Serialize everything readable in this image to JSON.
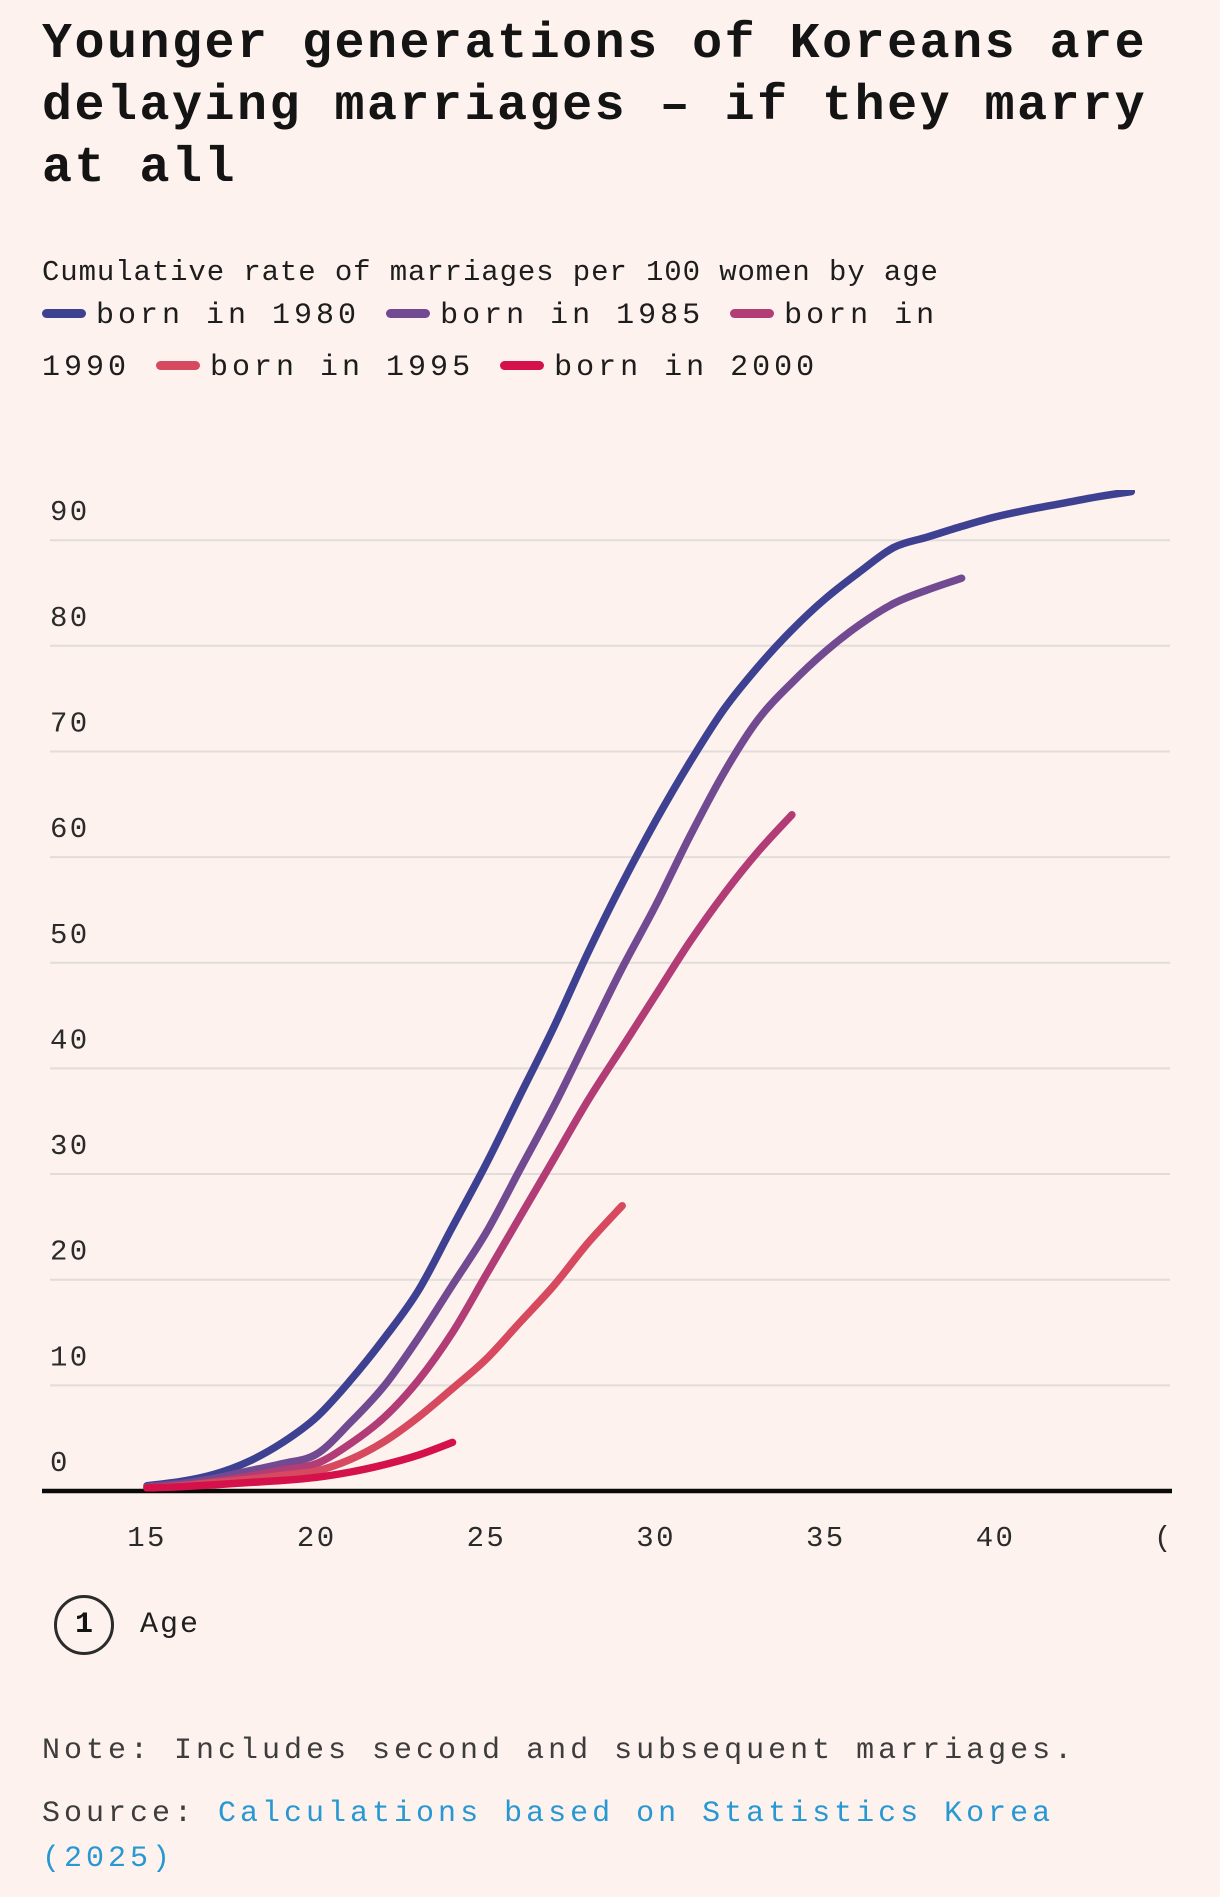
{
  "title": "Younger generations of Koreans are delaying marriages – if they marry at all",
  "subtitle": "Cumulative rate of marriages per 100 women by age",
  "colors": {
    "background": "#fdf2ee",
    "title_text": "#141414",
    "body_text": "#1d1d1d",
    "tick_text": "#2b2b2b",
    "note_text": "#3d3d3d",
    "grid": "#e2dcda",
    "axis": "#0a0a0a",
    "link": "#2798d3"
  },
  "legend": {
    "items": [
      {
        "label": "born in 1980",
        "color": "#3e4192"
      },
      {
        "label": "born in 1985",
        "color": "#714a91"
      },
      {
        "label": "born in 1990",
        "color": "#b23c75"
      },
      {
        "label": "born in 1995",
        "color": "#d6495f"
      },
      {
        "label": "born in 2000",
        "color": "#d4114b"
      }
    ]
  },
  "chart_data": {
    "type": "line",
    "title": "Younger generations of Koreans are delaying marriages – if they marry at all",
    "subtitle": "Cumulative rate of marriages per 100 women by age",
    "xlabel": "Age",
    "ylabel": "Cumulative rate of marriages per 100 women",
    "xlim": [
      13.2,
      45.5
    ],
    "ylim": [
      0,
      95
    ],
    "x_ticks": [
      15,
      20,
      25,
      30,
      35,
      40
    ],
    "y_ticks": [
      0,
      10,
      20,
      30,
      40,
      50,
      60,
      70,
      80,
      90
    ],
    "grid": "horizontal",
    "legend_position": "top",
    "series": [
      {
        "name": "born in 1980",
        "color": "#3e4192",
        "start_age": 15,
        "values": [
          0.5,
          0.9,
          1.6,
          2.8,
          4.6,
          7,
          10.5,
          14.5,
          19,
          25,
          31,
          37.5,
          44,
          51,
          57.5,
          63.5,
          69,
          74,
          78,
          81.5,
          84.5,
          87,
          89.3,
          90.3,
          91.3,
          92.2,
          92.9,
          93.5,
          94.1,
          94.6
        ]
      },
      {
        "name": "born in 1985",
        "color": "#714a91",
        "start_age": 15,
        "values": [
          0.4,
          0.7,
          1.2,
          1.9,
          2.6,
          3.5,
          6.5,
          10,
          14.5,
          19.5,
          24.5,
          30.5,
          36.5,
          43,
          49.5,
          55.5,
          62,
          68,
          73,
          76.5,
          79.5,
          82,
          84,
          85.3,
          86.4
        ]
      },
      {
        "name": "born in 1990",
        "color": "#b23c75",
        "start_age": 15,
        "values": [
          0.3,
          0.5,
          0.9,
          1.4,
          2,
          2.6,
          4.5,
          7,
          10.5,
          15,
          20.5,
          26,
          31.5,
          37,
          42,
          47,
          52,
          56.5,
          60.5,
          64
        ]
      },
      {
        "name": "born in 1995",
        "color": "#d6495f",
        "start_age": 15,
        "values": [
          0.3,
          0.5,
          0.8,
          1.1,
          1.5,
          1.9,
          3,
          4.7,
          7,
          9.7,
          12.5,
          16,
          19.5,
          23.5,
          27
        ]
      },
      {
        "name": "born in 2000",
        "color": "#d4114b",
        "start_age": 15,
        "values": [
          0.3,
          0.4,
          0.6,
          0.8,
          1,
          1.3,
          1.8,
          2.5,
          3.4,
          4.6
        ]
      }
    ]
  },
  "x_axis": {
    "tick_labels": [
      "15",
      "20",
      "25",
      "30",
      "35",
      "40"
    ],
    "clipped_label": "("
  },
  "y_axis": {
    "tick_labels": [
      "0",
      "10",
      "20",
      "30",
      "40",
      "50",
      "60",
      "70",
      "80",
      "90"
    ]
  },
  "footnote": {
    "marker": "1",
    "label": "Age"
  },
  "note": {
    "text": "Note: Includes second and subsequent marriages."
  },
  "source": {
    "prefix": "Source: ",
    "link_text": "Calculations based on Statistics Korea (2025)"
  }
}
